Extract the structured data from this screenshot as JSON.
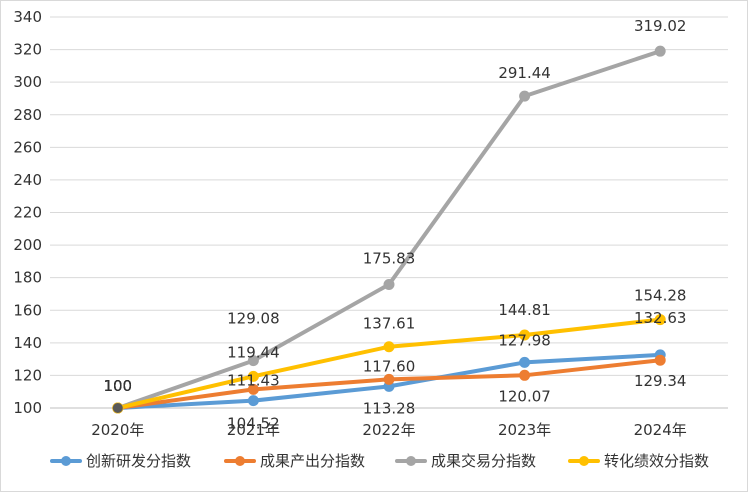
{
  "chart_data": {
    "type": "line",
    "title": "",
    "xlabel": "",
    "ylabel": "",
    "categories": [
      "2020年",
      "2021年",
      "2022年",
      "2023年",
      "2024年"
    ],
    "ylim": [
      100,
      340
    ],
    "yticks": [
      100,
      120,
      140,
      160,
      180,
      200,
      220,
      240,
      260,
      280,
      300,
      320,
      340
    ],
    "grid": true,
    "legend_position": "bottom",
    "series": [
      {
        "name": "创新研发分指数",
        "color": "#5b9bd5",
        "values": [
          100,
          104.52,
          113.28,
          127.98,
          132.63
        ],
        "labels": [
          "100",
          "104.52",
          "113.28",
          "127.98",
          "132.63"
        ]
      },
      {
        "name": "成果产出分指数",
        "color": "#ed7d31",
        "values": [
          100,
          111.43,
          117.6,
          120.07,
          129.34
        ],
        "labels": [
          "100",
          "111.43",
          "117.60",
          "120.07",
          "129.34"
        ]
      },
      {
        "name": "成果交易分指数",
        "color": "#a5a5a5",
        "values": [
          100,
          129.08,
          175.83,
          291.44,
          319.02
        ],
        "labels": [
          "100",
          "129.08",
          "175.83",
          "291.44",
          "319.02"
        ]
      },
      {
        "name": "转化绩效分指数",
        "color": "#ffc000",
        "values": [
          100,
          119.44,
          137.61,
          144.81,
          154.28
        ],
        "labels": [
          "100",
          "119.44",
          "137.61",
          "144.81",
          "154.28"
        ]
      }
    ]
  }
}
